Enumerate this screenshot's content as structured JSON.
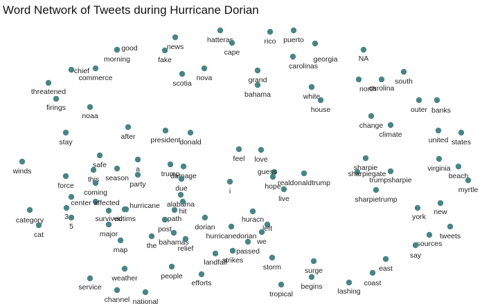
{
  "title": "Word Network of Tweets during Hurricane Dorian",
  "node_color": "#4a8484",
  "words": [
    "hatteras",
    "cape",
    "rico",
    "puerto",
    "news",
    "fake",
    "good",
    "morning",
    "georgia",
    "carolinas",
    "NA",
    "chief",
    "commerce",
    "threatened",
    "firings",
    "noaa",
    "scotia",
    "nova",
    "grand",
    "bahama",
    "white",
    "house",
    "north",
    "carolina",
    "south",
    "outer",
    "banks",
    "change",
    "climate",
    "stay",
    "after",
    "president",
    "donald",
    "united",
    "states",
    "winds",
    "safe",
    "this",
    "coming",
    "force",
    "a",
    "party",
    "season",
    "trump",
    "damage",
    "due",
    "alabama",
    "hit",
    "feel",
    "love",
    "guess",
    "hope",
    "realdonaldtrump",
    "live",
    "i",
    "sharpie",
    "sharpiegate",
    "trumpsharpie",
    "sharpietrump",
    "virginia",
    "beach",
    "myrtle",
    "category",
    "cat",
    "center",
    "affected",
    "3",
    "5",
    "hurricane",
    "survived",
    "victims",
    "path",
    "post",
    "major",
    "map",
    "the",
    "bahamas",
    "relief",
    "dorian",
    "hurricanedorian",
    "huracn",
    "left",
    "we",
    "passed",
    "strikes",
    "landfall",
    "york",
    "new",
    "tweets",
    "sources",
    "say",
    "storm",
    "surge",
    "begins",
    "tropical",
    "lashing",
    "coast",
    "east",
    "weather",
    "service",
    "channel",
    "national",
    "people",
    "efforts"
  ]
}
